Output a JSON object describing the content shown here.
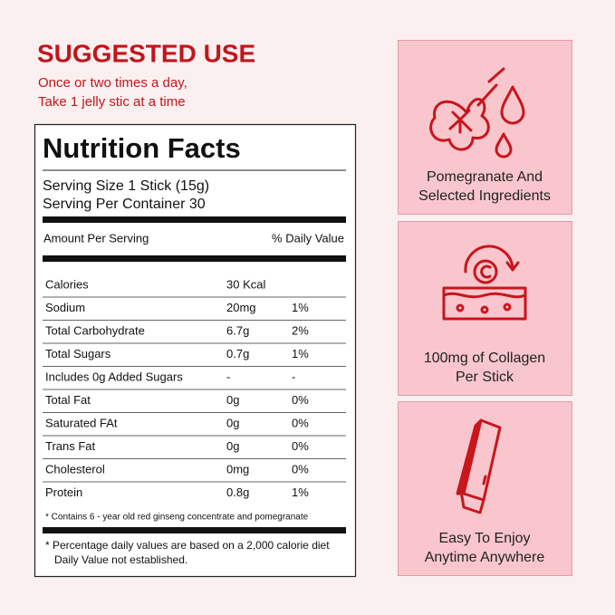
{
  "suggested_use": {
    "title": "SUGGESTED USE",
    "lines": [
      "Once or two times a day,",
      "Take 1 jelly stic at a time"
    ]
  },
  "nutrition": {
    "title": "Nutrition Facts",
    "serving_size": "Serving Size 1 Stick (15g)",
    "servings": "Serving Per Container 30",
    "amount_header": "Amount Per Serving",
    "dv_header": "% Daily Value",
    "rows": [
      [
        "Calories",
        "30 Kcal"
      ],
      [
        "Sodium",
        "20mg",
        "1%"
      ],
      [
        "Total Carbohydrate",
        "6.7g",
        "2%"
      ],
      [
        "Total Sugars",
        "0.7g",
        "1%"
      ],
      [
        "Includes 0g Added Sugars",
        "-",
        "-"
      ],
      [
        "Total Fat",
        "0g",
        "0%"
      ],
      [
        "Saturated FAt",
        "0g",
        "0%"
      ],
      [
        "Trans Fat",
        "0g",
        "0%"
      ],
      [
        "Cholesterol",
        "0mg",
        "0%"
      ],
      [
        "Protein",
        "0.8g",
        "1%"
      ]
    ],
    "footnote": "* Contains 6 - year old red ginseng concentrate and pomegranate",
    "notes": [
      "* Percentage daily values are based on a 2,000 calorie diet",
      "Daily Value not established."
    ]
  },
  "features": [
    {
      "lines": [
        "Pomegranate And",
        "Selected Ingredients"
      ]
    },
    {
      "lines": [
        "100mg of Collagen",
        "Per Stick"
      ]
    },
    {
      "lines": [
        "Easy To Enjoy",
        "Anytime Anywhere"
      ]
    }
  ]
}
